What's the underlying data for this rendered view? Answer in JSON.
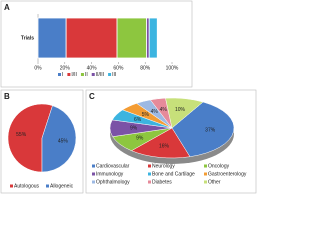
{
  "chart_data": [
    {
      "type": "stacked-bar",
      "panel": "A",
      "categories": [
        "Trials"
      ],
      "series": [
        {
          "name": "I",
          "color": "#4a7ec8",
          "values": [
            21
          ]
        },
        {
          "name": "I/II",
          "color": "#d9383a",
          "values": [
            38
          ]
        },
        {
          "name": "II",
          "color": "#8dc63f",
          "values": [
            22
          ]
        },
        {
          "name": "II/III",
          "color": "#7b52a6",
          "values": [
            2
          ]
        },
        {
          "name": "III",
          "color": "#3cb4e0",
          "values": [
            6
          ]
        }
      ],
      "xlim": [
        0,
        100
      ],
      "xticks": [
        {
          "value": 0,
          "label": "0%"
        },
        {
          "value": 20,
          "label": "20%"
        },
        {
          "value": 40,
          "label": "40%"
        },
        {
          "value": 60,
          "label": "60%"
        },
        {
          "value": 80,
          "label": "80%"
        },
        {
          "value": 100,
          "label": "100%"
        }
      ]
    },
    {
      "type": "pie",
      "panel": "B",
      "categories": [
        "Autologous",
        "Allogeneic"
      ],
      "values": [
        55,
        45
      ],
      "value_labels": [
        "55%",
        "45%"
      ],
      "colors": [
        "#d9383a",
        "#4a7ec8"
      ]
    },
    {
      "type": "pie3d",
      "panel": "C",
      "categories": [
        "Cardiovascular",
        "Neurology",
        "Oncology",
        "Immunology",
        "Bone and Cartilage",
        "Gastroenterology",
        "Ophthalmology",
        "Diabetes",
        "Other"
      ],
      "values": [
        37,
        16,
        9,
        9,
        6,
        5,
        4,
        4,
        10
      ],
      "value_labels": [
        "37%",
        "16%",
        "9%",
        "9%",
        "6%",
        "5%",
        "4%",
        "4%",
        "10%"
      ],
      "colors": [
        "#4a7ec8",
        "#d9383a",
        "#8dc63f",
        "#7b52a6",
        "#3cb4e0",
        "#f39c34",
        "#9db9e3",
        "#e68a9a",
        "#c7e07a"
      ]
    }
  ]
}
